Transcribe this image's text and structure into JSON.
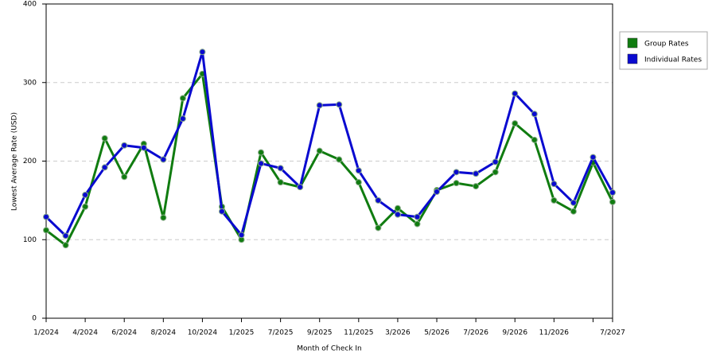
{
  "chart_data": {
    "type": "line",
    "x_label": "Month of Check In",
    "y_label": "Lowest Average Rate (USD)",
    "categories": [
      "1/2024",
      null,
      "4/2024",
      null,
      "6/2024",
      null,
      "8/2024",
      null,
      "10/2024",
      null,
      "1/2025",
      null,
      "7/2025",
      null,
      "9/2025",
      null,
      "11/2025",
      null,
      "3/2026",
      null,
      "5/2026",
      null,
      "7/2026",
      null,
      "9/2026",
      null,
      "11/2026",
      null,
      null,
      "7/2027"
    ],
    "series": [
      {
        "name": "Group Rates",
        "color": "#107c10",
        "values": [
          112,
          93,
          142,
          229,
          180,
          222,
          128,
          280,
          311,
          142,
          100,
          211,
          173,
          167,
          213,
          202,
          173,
          115,
          140,
          120,
          163,
          172,
          168,
          186,
          248,
          227,
          150,
          136,
          198,
          148
        ]
      },
      {
        "name": "Individual Rates",
        "color": "#0a0ad0",
        "values": [
          129,
          105,
          157,
          192,
          220,
          217,
          202,
          254,
          339,
          136,
          106,
          197,
          191,
          167,
          271,
          272,
          188,
          150,
          132,
          129,
          161,
          186,
          184,
          199,
          286,
          260,
          171,
          147,
          205,
          160
        ]
      }
    ],
    "ylim": [
      0,
      400
    ],
    "yticks": [
      0,
      100,
      200,
      300,
      400
    ],
    "grid": true,
    "legend": "right"
  }
}
